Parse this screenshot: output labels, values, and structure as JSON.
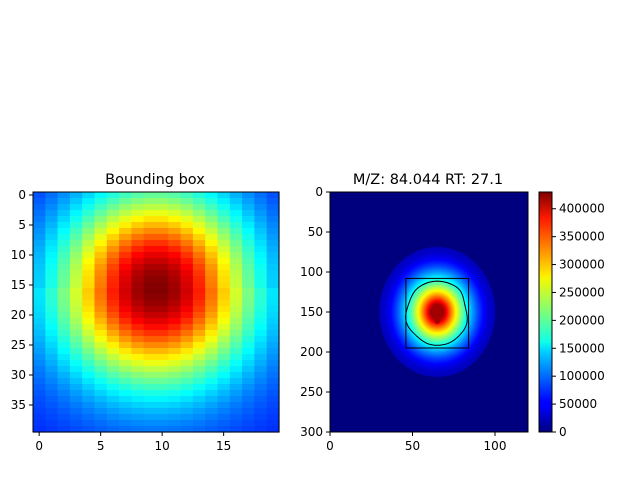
{
  "chart_data": [
    {
      "type": "heatmap",
      "title": "Bounding box",
      "colormap": "jet",
      "shape": [
        40,
        20
      ],
      "x_ticks": [
        0,
        5,
        10,
        15
      ],
      "y_ticks": [
        0,
        5,
        10,
        15,
        20,
        25,
        30,
        35
      ],
      "xlim": [
        -0.5,
        19.5
      ],
      "ylim": [
        39.5,
        -0.5
      ],
      "peak": {
        "x": 9.5,
        "y": 15.5
      },
      "peak_level": 1.0,
      "edge_level": 0.15
    },
    {
      "type": "heatmap",
      "title": "M/Z: 84.044  RT: 27.1",
      "colormap": "jet",
      "xlim": [
        0,
        120
      ],
      "ylim": [
        300,
        0
      ],
      "x_ticks": [
        0,
        50,
        100
      ],
      "y_ticks": [
        0,
        50,
        100,
        150,
        200,
        250,
        300
      ],
      "center": {
        "x": 65,
        "y": 150
      },
      "bounding_box": {
        "x0": 46,
        "x1": 84,
        "y0": 108,
        "y1": 195
      },
      "colorbar": {
        "min": 0,
        "max": 430000,
        "ticks": [
          0,
          50000,
          100000,
          150000,
          200000,
          250000,
          300000,
          350000,
          400000
        ],
        "tick_labels": [
          "0",
          "50000",
          "100000",
          "150000",
          "200000",
          "250000",
          "300000",
          "350000",
          "400000"
        ]
      }
    }
  ]
}
